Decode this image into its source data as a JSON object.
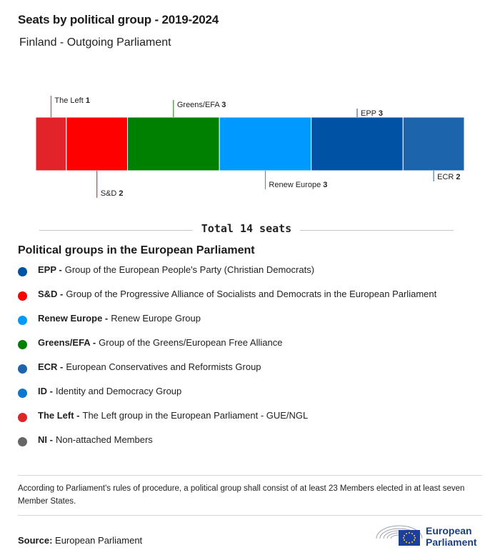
{
  "title": "Seats by political group - 2019-2024",
  "subtitle": "Finland - Outgoing Parliament",
  "chart_data": {
    "type": "bar",
    "stacked": true,
    "orientation": "horizontal",
    "segments": [
      {
        "name": "The Left",
        "value": 1,
        "color": "#e2242a",
        "label_pos": "top"
      },
      {
        "name": "S&D",
        "value": 2,
        "color": "#ff0000",
        "label_pos": "bottom"
      },
      {
        "name": "Greens/EFA",
        "value": 3,
        "color": "#008000",
        "label_pos": "top"
      },
      {
        "name": "Renew Europe",
        "value": 3,
        "color": "#0099ff",
        "label_pos": "bottom"
      },
      {
        "name": "EPP",
        "value": 3,
        "color": "#0052a5",
        "label_pos": "top"
      },
      {
        "name": "ECR",
        "value": 2,
        "color": "#1c65ad",
        "label_pos": "bottom"
      }
    ],
    "total_label": "Total 14 seats"
  },
  "legend": {
    "title": "Political groups in the European Parliament",
    "items": [
      {
        "abbr": "EPP -",
        "desc": "Group of the European People's Party (Christian Democrats)",
        "color": "#0052a5"
      },
      {
        "abbr": "S&D -",
        "desc": "Group of the Progressive Alliance of Socialists and Democrats in the European Parliament",
        "color": "#ff0000"
      },
      {
        "abbr": "Renew Europe -",
        "desc": "Renew Europe Group",
        "color": "#0099ff"
      },
      {
        "abbr": "Greens/EFA -",
        "desc": "Group of the Greens/European Free Alliance",
        "color": "#008000"
      },
      {
        "abbr": "ECR -",
        "desc": "European Conservatives and Reformists Group",
        "color": "#1c65ad"
      },
      {
        "abbr": "ID -",
        "desc": "Identity and Democracy Group",
        "color": "#0a77d1"
      },
      {
        "abbr": "The Left -",
        "desc": "The Left group in the European Parliament - GUE/NGL",
        "color": "#e2242a"
      },
      {
        "abbr": "NI -",
        "desc": "Non-attached Members",
        "color": "#666666"
      }
    ]
  },
  "note": "According to Parliament's rules of procedure, a political group shall consist of at least 23 Members elected in at least seven Member States.",
  "source": {
    "label": "Source:",
    "value": "European Parliament"
  },
  "logo": {
    "line1": "European",
    "line2": "Parliament"
  }
}
